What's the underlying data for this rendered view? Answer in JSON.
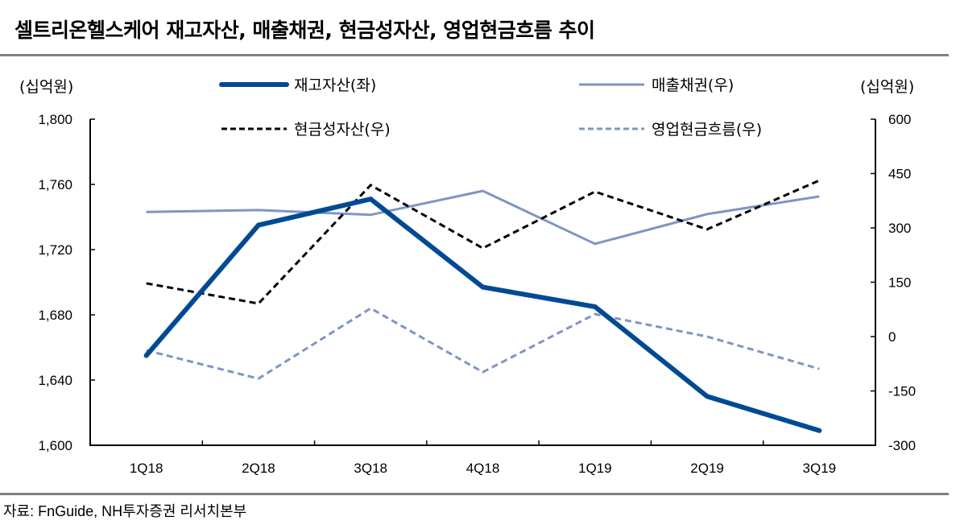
{
  "title": "셀트리온헬스케어 재고자산, 매출채권, 현금성자산, 영업현금흐름 추이",
  "unit_left": "(십억원)",
  "unit_right": "(십억원)",
  "source": "자료: FnGuide, NH투자증권 리서치본부",
  "colors": {
    "inventory": "#004a93",
    "receivables": "#7f95c4",
    "cash": "#000000",
    "ocf": "#7f95c4",
    "axis": "#000000",
    "rule": "#808080"
  },
  "chart_data": {
    "type": "line",
    "title": "셀트리온헬스케어 재고자산, 매출채권, 현금성자산, 영업현금흐름 추이",
    "xlabel": "",
    "ylabel": "(십억원)",
    "y2label": "(십억원)",
    "categories": [
      "1Q18",
      "2Q18",
      "3Q18",
      "4Q18",
      "1Q19",
      "2Q19",
      "3Q19"
    ],
    "ylim": [
      1600,
      1800
    ],
    "y_ticks": [
      1800,
      1760,
      1720,
      1680,
      1640,
      1600
    ],
    "y_tick_labels": [
      "1,800",
      "1,760",
      "1,720",
      "1,680",
      "1,640",
      "1,600"
    ],
    "y2lim": [
      -300,
      600
    ],
    "y2_ticks": [
      600,
      450,
      300,
      150,
      0,
      -150,
      -300
    ],
    "y2_tick_labels": [
      "600",
      "450",
      "300",
      "150",
      "0",
      "-150",
      "-300"
    ],
    "grid": false,
    "legend_position": "top",
    "series": [
      {
        "name": "재고자산(좌)",
        "axis": "left",
        "style": "solid-thick",
        "color_key": "inventory",
        "values": [
          1655,
          1735,
          1751,
          1697,
          1685,
          1630,
          1609
        ]
      },
      {
        "name": "매출채권(우)",
        "axis": "right",
        "style": "solid",
        "color_key": "receivables",
        "values": [
          344,
          349,
          336,
          402,
          256,
          338,
          387
        ]
      },
      {
        "name": "현금성자산(우)",
        "axis": "right",
        "style": "dashed",
        "color_key": "cash",
        "values": [
          147,
          91,
          418,
          244,
          400,
          296,
          431
        ]
      },
      {
        "name": "영업현금흐름(우)",
        "axis": "right",
        "style": "dashed",
        "color_key": "ocf",
        "values": [
          -38,
          -116,
          78,
          -98,
          62,
          0,
          -89
        ]
      }
    ]
  }
}
